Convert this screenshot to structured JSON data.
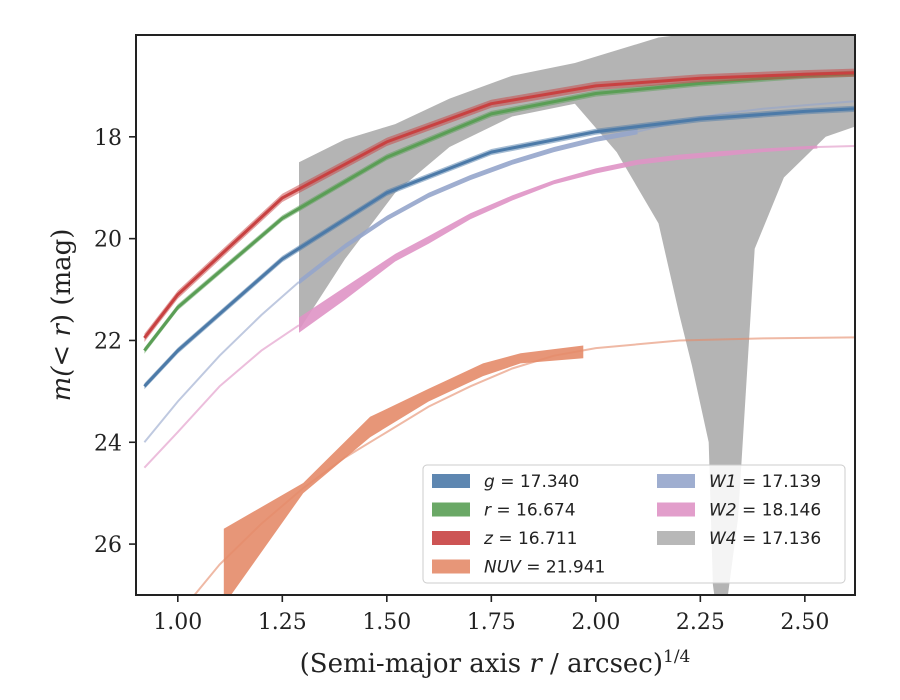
{
  "chart_data": {
    "type": "line",
    "xlabel": "(Semi-major axis r / arcsec)^{1/4}",
    "ylabel": "m(< r) (mag)",
    "xlim": [
      0.9,
      2.62
    ],
    "ylim": [
      27.0,
      16.0
    ],
    "y_inverted": true,
    "x_ticks": [
      "1.00",
      "1.25",
      "1.50",
      "1.75",
      "2.00",
      "2.25",
      "2.50"
    ],
    "y_ticks": [
      "18",
      "20",
      "22",
      "24",
      "26"
    ],
    "grid": false,
    "legend_position": "lower-right",
    "series": [
      {
        "name": "g = 17.340",
        "color": "#4c7aa8",
        "kind": "curve",
        "x": [
          0.92,
          1.0,
          1.25,
          1.5,
          1.75,
          2.0,
          2.25,
          2.5,
          2.62
        ],
        "y": [
          22.9,
          22.2,
          20.4,
          19.1,
          18.3,
          17.9,
          17.65,
          17.5,
          17.45
        ],
        "band": 0.06
      },
      {
        "name": "r = 16.674",
        "color": "#5a9e55",
        "kind": "curve",
        "x": [
          0.92,
          1.0,
          1.25,
          1.5,
          1.75,
          2.0,
          2.25,
          2.5,
          2.62
        ],
        "y": [
          22.2,
          21.35,
          19.6,
          18.4,
          17.55,
          17.15,
          16.95,
          16.8,
          16.76
        ],
        "band": 0.06
      },
      {
        "name": "z = 16.711",
        "color": "#c84141",
        "kind": "curve",
        "x": [
          0.92,
          1.0,
          1.25,
          1.5,
          1.75,
          2.0,
          2.25,
          2.5,
          2.62
        ],
        "y": [
          21.95,
          21.1,
          19.2,
          18.1,
          17.35,
          17.0,
          16.85,
          16.77,
          16.74
        ],
        "band": 0.08
      },
      {
        "name": "NUV = 21.941",
        "color": "#e48b69",
        "kind": "band",
        "x": [
          1.11,
          1.3,
          1.46,
          1.6,
          1.73,
          1.82,
          1.97
        ],
        "lo": [
          25.7,
          24.8,
          23.5,
          22.95,
          22.45,
          22.25,
          22.1
        ],
        "hi": [
          27.2,
          25.0,
          23.9,
          23.2,
          22.7,
          22.45,
          22.35
        ],
        "ext_x": [
          1.04,
          1.1,
          1.2,
          1.3,
          1.4,
          1.5,
          1.6,
          1.7,
          1.8,
          1.9,
          2.0,
          2.2,
          2.4,
          2.62
        ],
        "ext_y": [
          27.0,
          26.4,
          25.6,
          24.9,
          24.3,
          23.8,
          23.3,
          22.9,
          22.55,
          22.3,
          22.15,
          22.0,
          21.96,
          21.94
        ]
      },
      {
        "name": "W1 = 17.139",
        "color": "#95a5cb",
        "kind": "band",
        "x": [
          1.29,
          1.4,
          1.5,
          1.6,
          1.7,
          1.8,
          1.9,
          2.0,
          2.1
        ],
        "lo": [
          20.8,
          20.1,
          19.55,
          19.1,
          18.75,
          18.45,
          18.2,
          18.0,
          17.85
        ],
        "hi": [
          20.9,
          20.2,
          19.65,
          19.2,
          18.85,
          18.55,
          18.3,
          18.1,
          17.95
        ],
        "ext_x": [
          0.92,
          1.0,
          1.1,
          1.2,
          1.29,
          2.1,
          2.2,
          2.3,
          2.4,
          2.5,
          2.62
        ],
        "ext_y": [
          24.0,
          23.2,
          22.3,
          21.5,
          20.85,
          17.9,
          17.7,
          17.55,
          17.45,
          17.38,
          17.3
        ]
      },
      {
        "name": "W2 = 18.146",
        "color": "#df93c5",
        "kind": "band",
        "x": [
          1.29,
          1.4,
          1.52,
          1.6,
          1.7,
          1.8,
          1.9,
          2.0,
          2.1,
          2.2,
          2.3,
          2.4,
          2.53
        ],
        "lo": [
          21.55,
          20.95,
          20.3,
          19.95,
          19.5,
          19.15,
          18.85,
          18.62,
          18.45,
          18.35,
          18.28,
          18.23,
          18.17
        ],
        "hi": [
          21.85,
          21.2,
          20.45,
          20.1,
          19.62,
          19.25,
          18.93,
          18.72,
          18.55,
          18.45,
          18.38,
          18.3,
          18.23
        ],
        "ext_x": [
          0.92,
          1.0,
          1.1,
          1.2,
          1.29,
          2.53,
          2.62
        ],
        "ext_y": [
          24.5,
          23.8,
          22.9,
          22.2,
          21.7,
          18.2,
          18.18
        ]
      },
      {
        "name": "W4 = 17.136",
        "color": "#b0b0b0",
        "kind": "band",
        "x": [
          1.29,
          1.4,
          1.52,
          1.65,
          1.8,
          1.95,
          2.05,
          2.15,
          2.2,
          2.23,
          2.27,
          2.28,
          2.3,
          2.34,
          2.38,
          2.45,
          2.55,
          2.62
        ],
        "lo": [
          18.5,
          18.05,
          17.75,
          17.25,
          16.8,
          16.55,
          16.3,
          16.05,
          16.0,
          16.0,
          16.0,
          16.0,
          16.0,
          16.0,
          16.0,
          16.0,
          16.0,
          16.0
        ],
        "hi": [
          21.8,
          20.4,
          19.1,
          18.2,
          17.6,
          17.35,
          18.3,
          19.7,
          21.5,
          22.5,
          24.0,
          26.8,
          28.0,
          25.5,
          20.2,
          18.8,
          18.0,
          17.8
        ],
        "ext_x": [],
        "ext_y": []
      }
    ]
  }
}
